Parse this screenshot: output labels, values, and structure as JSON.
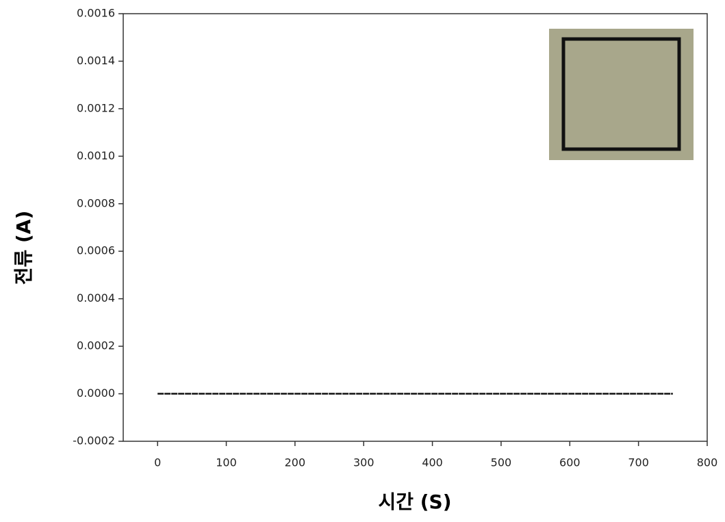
{
  "chart_data": {
    "type": "line",
    "x_label": "시간 (S)",
    "y_label": "전류 (A)",
    "x": [
      0,
      150,
      300,
      450,
      600,
      750
    ],
    "series": [
      {
        "color": "#111111",
        "values": [
          0,
          0,
          0,
          0,
          0,
          0
        ]
      }
    ],
    "xlim": [
      -50,
      800
    ],
    "xticks": [
      0,
      100,
      200,
      300,
      400,
      500,
      600,
      700,
      800
    ],
    "ylim": [
      -0.0002,
      0.0016
    ],
    "yticks": [
      -0.0002,
      {
        "value": 0,
        "label": "0.0000"
      },
      0.0002,
      0.0004,
      0.0006,
      0.0008,
      {
        "value": 0.001,
        "label": "0.0010"
      },
      0.0012,
      0.0014,
      0.0016
    ],
    "grid": false
  }
}
